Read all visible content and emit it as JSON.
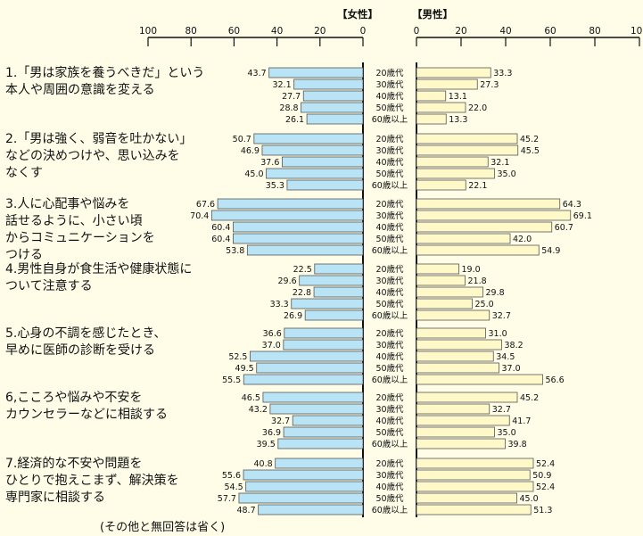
{
  "chart_data": {
    "type": "bar",
    "female_panel_title": "【女性】",
    "male_panel_title": "【男性】",
    "female_axis_ticks": [
      "100",
      "80",
      "60",
      "40",
      "20",
      "0"
    ],
    "male_axis_ticks": [
      "0",
      "20",
      "40",
      "60",
      "80",
      "100"
    ],
    "xlim": [
      0,
      100
    ],
    "age_groups": [
      "20歳代",
      "30歳代",
      "40歳代",
      "50歳代",
      "60歳以上"
    ],
    "colors": {
      "female": "#b8e4f6",
      "male": "#fff8c8"
    },
    "groups": [
      {
        "label": "1.「男は家族を養うべきだ」という\n本人や周囲の意識を変える",
        "female": [
          43.7,
          32.1,
          27.7,
          28.8,
          26.1
        ],
        "male": [
          33.3,
          27.3,
          13.1,
          22.0,
          13.3
        ]
      },
      {
        "label": "2.「男は強く、弱音を吐かない」\nなどの決めつけや、思い込みを\nなくす",
        "female": [
          50.7,
          46.9,
          37.6,
          45.0,
          35.3
        ],
        "male": [
          45.2,
          45.5,
          32.1,
          35.0,
          22.1
        ]
      },
      {
        "label": "3.人に心配事や悩みを\n話せるように、小さい頃\nからコミュニケーションを\nつける",
        "female": [
          67.6,
          70.4,
          60.4,
          60.4,
          53.8
        ],
        "male": [
          64.3,
          69.1,
          60.7,
          42.0,
          54.9
        ]
      },
      {
        "label": "4.男性自身が食生活や健康状態に\nついて注意する",
        "female": [
          22.5,
          29.6,
          22.8,
          33.3,
          26.9
        ],
        "male": [
          19.0,
          21.8,
          29.8,
          25.0,
          32.7
        ]
      },
      {
        "label": "5.心身の不調を感じたとき、\n早めに医師の診断を受ける",
        "female": [
          36.6,
          37.0,
          52.5,
          49.5,
          55.5
        ],
        "male": [
          31.0,
          38.2,
          34.5,
          37.0,
          56.6
        ]
      },
      {
        "label": "6,こころや悩みや不安を\nカウンセラーなどに相談する",
        "female": [
          46.5,
          43.2,
          32.7,
          36.9,
          39.5
        ],
        "male": [
          45.2,
          32.7,
          41.7,
          35.0,
          39.8
        ]
      },
      {
        "label": "7.経済的な不安や問題を\nひとりで抱えこまず、解決策を\n専門家に相談する",
        "female": [
          40.8,
          55.6,
          54.5,
          57.7,
          48.7
        ],
        "male": [
          52.4,
          50.9,
          52.4,
          45.0,
          51.3
        ]
      }
    ],
    "footnote": "(その他と無回答は省く)"
  }
}
